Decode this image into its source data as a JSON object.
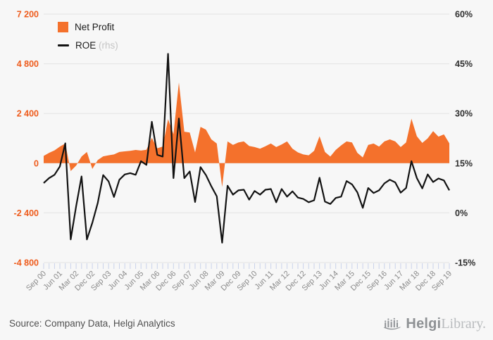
{
  "legend": {
    "net_profit": "Net Profit",
    "roe": "ROE",
    "roe_suffix": "(rhs)"
  },
  "footer": {
    "source": "Source: Company Data, Helgi Analytics",
    "brand_bold": "Helgi",
    "brand_light": "Library."
  },
  "colors": {
    "background": "#f7f7f7",
    "accent_orange": "#f4712c",
    "axis_orange": "#ee5c1d",
    "line_black": "#121212",
    "grid": "#e3e3e3",
    "tick_blue": "#c9d2ea",
    "x_label_gray": "#8a8a8a",
    "right_axis_text": "#2f2f2f",
    "rhs_gray": "#c5c5c5",
    "brand_gray": "#8f9296"
  },
  "chart_data": {
    "type": "area",
    "title": "",
    "xlabel": "",
    "ylabel": "",
    "grid": "horizontal",
    "legend_position": "top-left",
    "categories": [
      "Sep 00",
      "Dec 00",
      "Mar 01",
      "Jun 01",
      "Sep 01",
      "Dec 01",
      "Mar 02",
      "Jun 02",
      "Sep 02",
      "Dec 02",
      "Mar 03",
      "Jun 03",
      "Sep 03",
      "Dec 03",
      "Mar 04",
      "Jun 04",
      "Sep 04",
      "Dec 04",
      "Jun 05",
      "Sep 05",
      "Dec 05",
      "Mar 06",
      "Jun 06",
      "Sep 06",
      "Dec 06",
      "Mar 07",
      "Jun 07",
      "Sep 07",
      "Dec 07",
      "Mar 08",
      "Jun 08",
      "Sep 08",
      "Dec 08",
      "Mar 09",
      "Jun 09",
      "Sep 09",
      "Dec 09",
      "Mar 10",
      "Jun 10",
      "Sep 10",
      "Dec 10",
      "Mar 11",
      "Jun 11",
      "Sep 11",
      "Dec 11",
      "Mar 12",
      "Jun 12",
      "Sep 12",
      "Dec 12",
      "Mar 13",
      "Jun 13",
      "Sep 13",
      "Dec 13",
      "Mar 14",
      "Jun 14",
      "Sep 14",
      "Dec 14",
      "Mar 15",
      "Jun 15",
      "Sep 15",
      "Dec 15",
      "Mar 16",
      "Jun 16",
      "Sep 16",
      "Dec 16",
      "Mar 17",
      "Jun 17",
      "Sep 17",
      "Dec 17",
      "Mar 18",
      "Jun 18",
      "Sep 18",
      "Dec 18",
      "Mar 19",
      "Jun 19",
      "Sep 19"
    ],
    "series": [
      {
        "name": "Net Profit",
        "type": "area",
        "axis": "left",
        "color": "#f4712c",
        "values": [
          350,
          500,
          620,
          800,
          950,
          -380,
          -120,
          320,
          540,
          -280,
          150,
          330,
          380,
          420,
          540,
          570,
          600,
          640,
          610,
          650,
          1220,
          720,
          800,
          2120,
          1400,
          3900,
          1520,
          1480,
          520,
          1750,
          1620,
          1150,
          950,
          -1150,
          1050,
          880,
          1000,
          1050,
          830,
          780,
          700,
          820,
          950,
          780,
          900,
          1050,
          700,
          520,
          420,
          380,
          600,
          1300,
          540,
          320,
          640,
          860,
          1050,
          1000,
          500,
          280,
          880,
          950,
          800,
          1050,
          1150,
          1050,
          780,
          1000,
          2150,
          1300,
          980,
          1200,
          1550,
          1280,
          1390,
          960
        ]
      },
      {
        "name": "ROE",
        "type": "line",
        "axis": "right",
        "color": "#121212",
        "values": [
          9.0,
          10.5,
          11.5,
          14.0,
          21.0,
          -8.0,
          2.0,
          11.0,
          -8.0,
          -3.0,
          3.0,
          11.4,
          9.5,
          4.8,
          10.0,
          11.6,
          12.0,
          11.5,
          15.6,
          14.5,
          27.5,
          17.5,
          17.0,
          48.0,
          10.5,
          28.5,
          10.5,
          12.5,
          3.3,
          13.8,
          11.4,
          8.0,
          5.0,
          -9.0,
          8.2,
          5.5,
          6.8,
          7.0,
          4.0,
          6.6,
          5.5,
          7.0,
          7.2,
          3.2,
          7.2,
          4.9,
          6.5,
          4.6,
          4.2,
          3.2,
          3.8,
          10.6,
          3.4,
          2.7,
          4.5,
          4.9,
          9.6,
          8.6,
          6.2,
          1.5,
          7.5,
          6.0,
          6.8,
          8.9,
          10.0,
          9.2,
          6.1,
          7.5,
          15.6,
          10.5,
          7.4,
          11.6,
          9.3,
          10.4,
          9.8,
          6.8
        ]
      }
    ],
    "left_axis": {
      "range": [
        -4800,
        7200
      ],
      "ticks": [
        7200,
        4800,
        2400,
        0,
        -2400,
        -4800
      ],
      "labels": [
        "7 200",
        "4 800",
        "2 400",
        "0",
        "-2 400",
        "-4 800"
      ]
    },
    "right_axis": {
      "range": [
        -15,
        60
      ],
      "ticks": [
        60,
        45,
        30,
        15,
        0,
        -15
      ],
      "labels": [
        "60%",
        "45%",
        "30%",
        "15%",
        "0%",
        "-15%"
      ]
    },
    "x_tick_labels": [
      {
        "index": 0,
        "label": "Sep 00"
      },
      {
        "index": 3,
        "label": "Jun 01"
      },
      {
        "index": 6,
        "label": "Mar 02"
      },
      {
        "index": 9,
        "label": "Dec 02"
      },
      {
        "index": 12,
        "label": "Sep 03"
      },
      {
        "index": 15,
        "label": "Jun 04"
      },
      {
        "index": 18,
        "label": "Jun 05"
      },
      {
        "index": 21,
        "label": "Mar 06"
      },
      {
        "index": 24,
        "label": "Dec 06"
      },
      {
        "index": 27,
        "label": "Sep 07"
      },
      {
        "index": 30,
        "label": "Jun 08"
      },
      {
        "index": 33,
        "label": "Mar 09"
      },
      {
        "index": 36,
        "label": "Dec 09"
      },
      {
        "index": 39,
        "label": "Sep 10"
      },
      {
        "index": 42,
        "label": "Jun 11"
      },
      {
        "index": 45,
        "label": "Mar 12"
      },
      {
        "index": 48,
        "label": "Dec 12"
      },
      {
        "index": 51,
        "label": "Sep 13"
      },
      {
        "index": 54,
        "label": "Jun 14"
      },
      {
        "index": 57,
        "label": "Mar 15"
      },
      {
        "index": 60,
        "label": "Dec 15"
      },
      {
        "index": 63,
        "label": "Sep 16"
      },
      {
        "index": 66,
        "label": "Jun 17"
      },
      {
        "index": 69,
        "label": "Mar 18"
      },
      {
        "index": 72,
        "label": "Dec 18"
      },
      {
        "index": 75,
        "label": "Sep 19"
      }
    ]
  }
}
